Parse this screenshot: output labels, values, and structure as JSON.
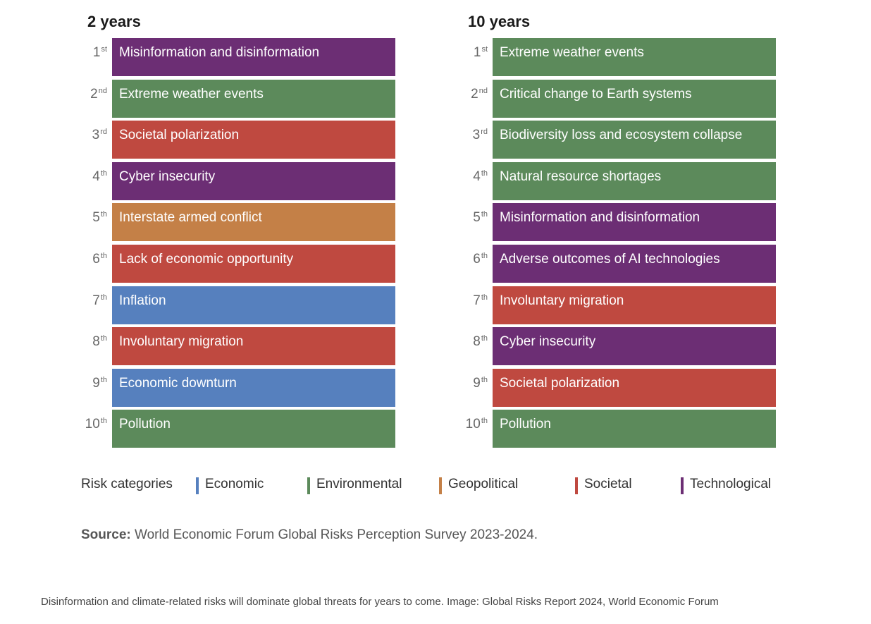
{
  "colors": {
    "Economic": "#5680be",
    "Environmental": "#5c8a5b",
    "Geopolitical": "#c48047",
    "Societal": "#bf4940",
    "Technological": "#6c2e74"
  },
  "chart_data": {
    "type": "table",
    "columns": [
      {
        "title": "2 years",
        "rows": [
          {
            "rank": "1",
            "suffix": "st",
            "risk": "Misinformation and disinformation",
            "category": "Technological"
          },
          {
            "rank": "2",
            "suffix": "nd",
            "risk": "Extreme weather events",
            "category": "Environmental"
          },
          {
            "rank": "3",
            "suffix": "rd",
            "risk": "Societal polarization",
            "category": "Societal"
          },
          {
            "rank": "4",
            "suffix": "th",
            "risk": "Cyber insecurity",
            "category": "Technological"
          },
          {
            "rank": "5",
            "suffix": "th",
            "risk": "Interstate armed conflict",
            "category": "Geopolitical"
          },
          {
            "rank": "6",
            "suffix": "th",
            "risk": "Lack of economic opportunity",
            "category": "Societal"
          },
          {
            "rank": "7",
            "suffix": "th",
            "risk": "Inflation",
            "category": "Economic"
          },
          {
            "rank": "8",
            "suffix": "th",
            "risk": "Involuntary migration",
            "category": "Societal"
          },
          {
            "rank": "9",
            "suffix": "th",
            "risk": "Economic downturn",
            "category": "Economic"
          },
          {
            "rank": "10",
            "suffix": "th",
            "risk": "Pollution",
            "category": "Environmental"
          }
        ]
      },
      {
        "title": "10 years",
        "rows": [
          {
            "rank": "1",
            "suffix": "st",
            "risk": "Extreme weather events",
            "category": "Environmental"
          },
          {
            "rank": "2",
            "suffix": "nd",
            "risk": "Critical change to Earth systems",
            "category": "Environmental"
          },
          {
            "rank": "3",
            "suffix": "rd",
            "risk": "Biodiversity loss and ecosystem collapse",
            "category": "Environmental"
          },
          {
            "rank": "4",
            "suffix": "th",
            "risk": "Natural resource shortages",
            "category": "Environmental"
          },
          {
            "rank": "5",
            "suffix": "th",
            "risk": "Misinformation and disinformation",
            "category": "Technological"
          },
          {
            "rank": "6",
            "suffix": "th",
            "risk": "Adverse outcomes of AI technologies",
            "category": "Technological"
          },
          {
            "rank": "7",
            "suffix": "th",
            "risk": "Involuntary migration",
            "category": "Societal"
          },
          {
            "rank": "8",
            "suffix": "th",
            "risk": "Cyber insecurity",
            "category": "Technological"
          },
          {
            "rank": "9",
            "suffix": "th",
            "risk": "Societal polarization",
            "category": "Societal"
          },
          {
            "rank": "10",
            "suffix": "th",
            "risk": "Pollution",
            "category": "Environmental"
          }
        ]
      }
    ],
    "legend": {
      "title": "Risk categories",
      "items": [
        "Economic",
        "Environmental",
        "Geopolitical",
        "Societal",
        "Technological"
      ]
    }
  },
  "source": {
    "label": "Source:",
    "text": " World Economic Forum Global Risks Perception Survey 2023-2024."
  },
  "caption": "Disinformation and climate-related risks will dominate global threats for years to come. Image: Global Risks Report 2024, World Economic Forum"
}
